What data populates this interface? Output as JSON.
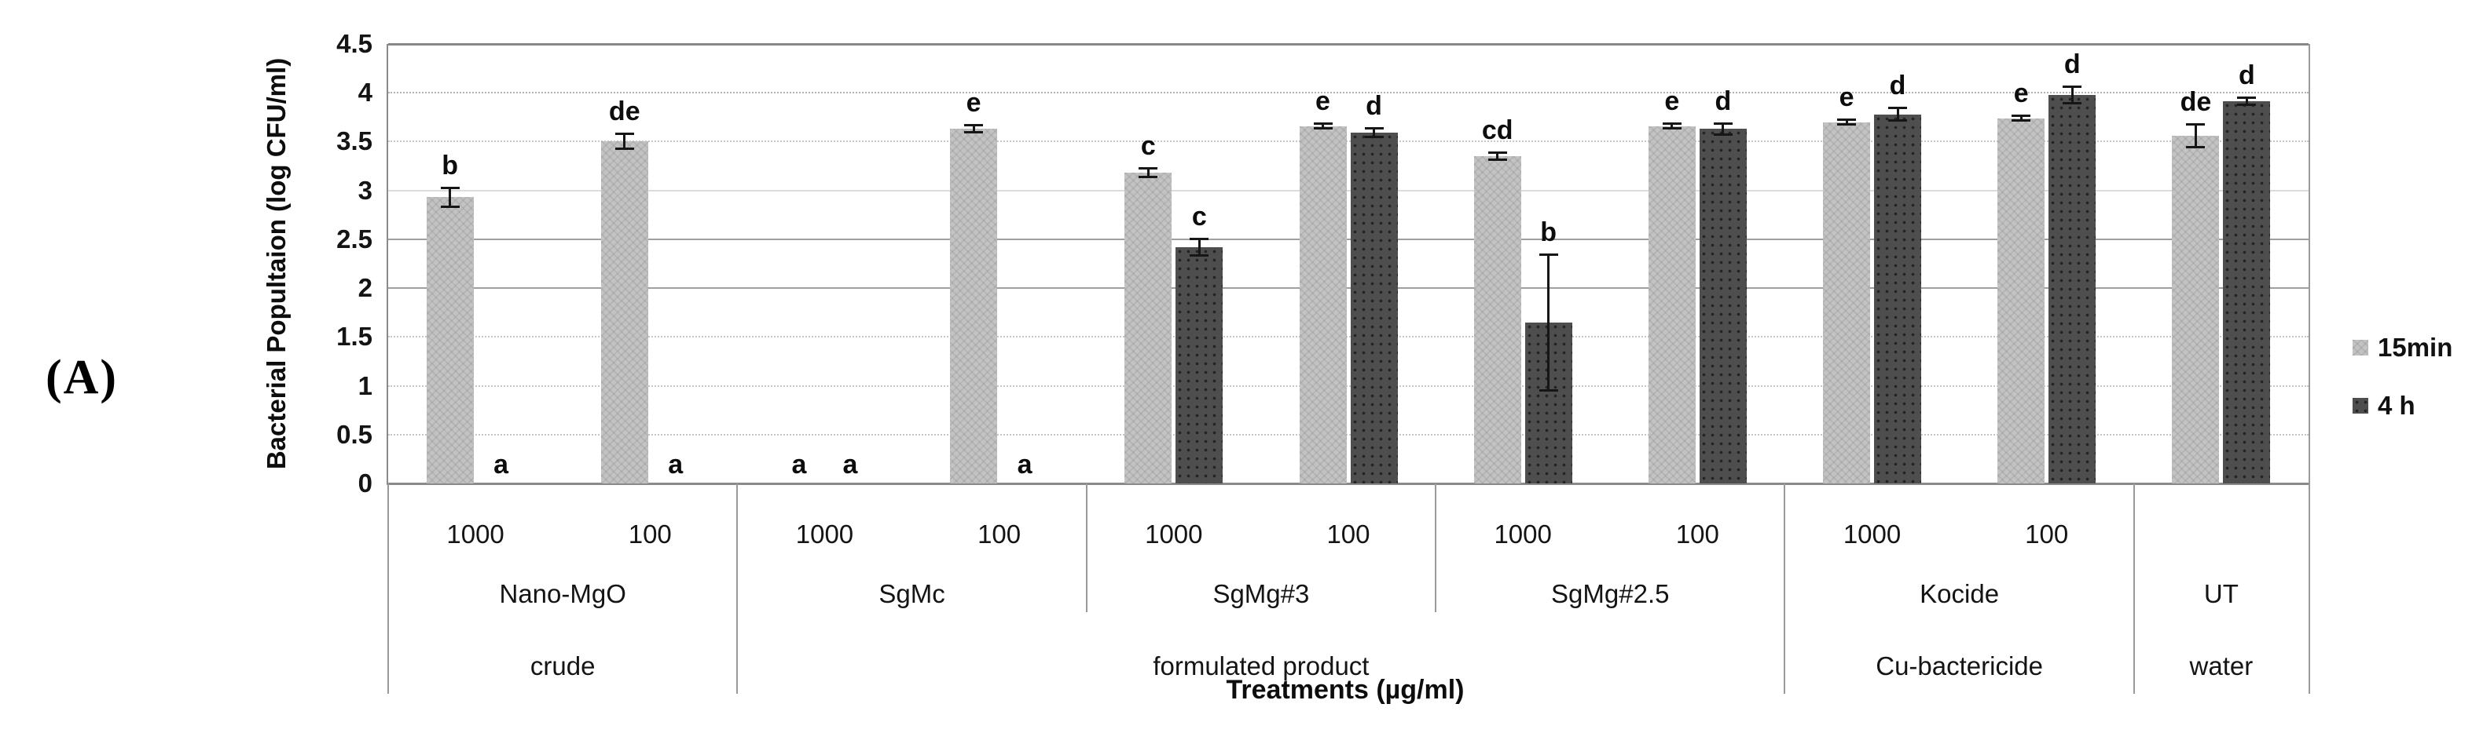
{
  "chart_data": {
    "type": "bar",
    "panel_label": "(A)",
    "title": "",
    "ylabel": "Bacterial Popultaion (log CFU/ml)",
    "xlabel": "Treatments (µg/ml)",
    "ylim": [
      0,
      4.5
    ],
    "ytick_step": 0.5,
    "grid": true,
    "legend_position": "right",
    "yticks": [
      {
        "value": 4.5,
        "label": "4.5"
      },
      {
        "value": 4.0,
        "label": "4"
      },
      {
        "value": 3.5,
        "label": "3.5"
      },
      {
        "value": 3.0,
        "label": "3"
      },
      {
        "value": 2.5,
        "label": "2.5"
      },
      {
        "value": 2.0,
        "label": "2"
      },
      {
        "value": 1.5,
        "label": "1.5"
      },
      {
        "value": 1.0,
        "label": "1"
      },
      {
        "value": 0.5,
        "label": "0.5"
      },
      {
        "value": 0.0,
        "label": "0"
      }
    ],
    "legend": [
      {
        "label": "15min",
        "series": "15min"
      },
      {
        "label": "4 h",
        "series": "4h"
      }
    ],
    "series_names": [
      "15min",
      "4 h"
    ],
    "groups": [
      {
        "product": "Nano-MgO",
        "category": "crude",
        "doses": [
          {
            "dose": "1000",
            "bars": [
              {
                "series": "15min",
                "value": 2.93,
                "error": 0.1,
                "letter": "b"
              },
              {
                "series": "4 h",
                "value": 0,
                "error": 0,
                "letter": "a"
              }
            ]
          },
          {
            "dose": "100",
            "bars": [
              {
                "series": "15min",
                "value": 3.5,
                "error": 0.08,
                "letter": "de"
              },
              {
                "series": "4 h",
                "value": 0,
                "error": 0,
                "letter": "a"
              }
            ]
          }
        ]
      },
      {
        "product": "SgMc",
        "category": "formulated product",
        "doses": [
          {
            "dose": "1000",
            "bars": [
              {
                "series": "15min",
                "value": 0,
                "error": 0,
                "letter": "a"
              },
              {
                "series": "4 h",
                "value": 0,
                "error": 0,
                "letter": "a"
              }
            ]
          },
          {
            "dose": "100",
            "bars": [
              {
                "series": "15min",
                "value": 3.63,
                "error": 0.04,
                "letter": "e"
              },
              {
                "series": "4 h",
                "value": 0,
                "error": 0,
                "letter": "a"
              }
            ]
          }
        ]
      },
      {
        "product": "SgMg#3",
        "category": "formulated product",
        "doses": [
          {
            "dose": "1000",
            "bars": [
              {
                "series": "15min",
                "value": 3.18,
                "error": 0.05,
                "letter": "c"
              },
              {
                "series": "4 h",
                "value": 2.42,
                "error": 0.09,
                "letter": "c"
              }
            ]
          },
          {
            "dose": "100",
            "bars": [
              {
                "series": "15min",
                "value": 3.66,
                "error": 0.03,
                "letter": "e"
              },
              {
                "series": "4 h",
                "value": 3.59,
                "error": 0.05,
                "letter": "d"
              }
            ]
          }
        ]
      },
      {
        "product": "SgMg#2.5",
        "category": "formulated product",
        "doses": [
          {
            "dose": "1000",
            "bars": [
              {
                "series": "15min",
                "value": 3.35,
                "error": 0.04,
                "letter": "cd"
              },
              {
                "series": "4 h",
                "value": 1.65,
                "error": 0.7,
                "letter": "b"
              }
            ]
          },
          {
            "dose": "100",
            "bars": [
              {
                "series": "15min",
                "value": 3.66,
                "error": 0.03,
                "letter": "e"
              },
              {
                "series": "4 h",
                "value": 3.63,
                "error": 0.06,
                "letter": "d"
              }
            ]
          }
        ]
      },
      {
        "product": "Kocide",
        "category": "Cu-bactericide",
        "doses": [
          {
            "dose": "1000",
            "bars": [
              {
                "series": "15min",
                "value": 3.7,
                "error": 0.03,
                "letter": "e"
              },
              {
                "series": "4 h",
                "value": 3.78,
                "error": 0.07,
                "letter": "d"
              }
            ]
          },
          {
            "dose": "100",
            "bars": [
              {
                "series": "15min",
                "value": 3.74,
                "error": 0.03,
                "letter": "e"
              },
              {
                "series": "4 h",
                "value": 3.98,
                "error": 0.09,
                "letter": "d"
              }
            ]
          }
        ]
      },
      {
        "product": "UT",
        "category": "water",
        "doses": [
          {
            "dose": "",
            "bars": [
              {
                "series": "15min",
                "value": 3.56,
                "error": 0.12,
                "letter": "de"
              },
              {
                "series": "4 h",
                "value": 3.91,
                "error": 0.04,
                "letter": "d"
              }
            ]
          }
        ]
      }
    ],
    "colors": {
      "bar_15min": "#c3c3c3",
      "bar_4h": "#4e4e4e",
      "error_bar": "#161616",
      "gridline": "#9f9f9f",
      "axis": "#8a8a8a",
      "text": "#111111"
    }
  }
}
